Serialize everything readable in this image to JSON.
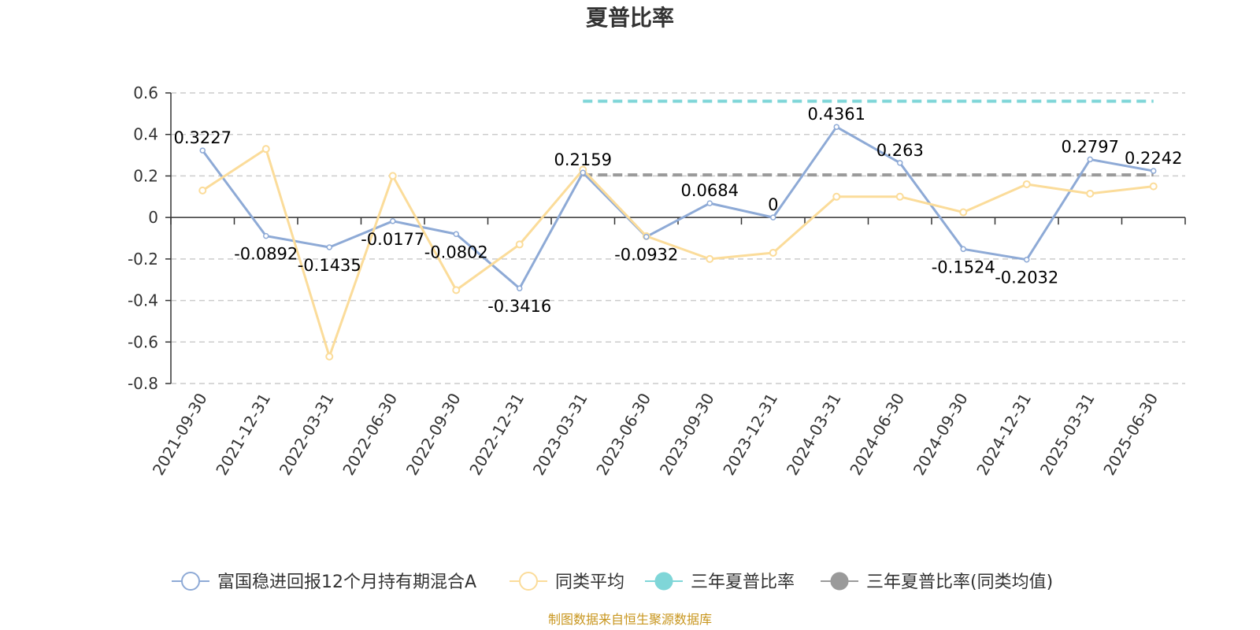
{
  "chart_data": {
    "type": "line",
    "title": "夏普比率",
    "xlabel": "",
    "ylabel": "",
    "categories": [
      "2021-09-30",
      "2021-12-31",
      "2022-03-31",
      "2022-06-30",
      "2022-09-30",
      "2022-12-31",
      "2023-03-31",
      "2023-06-30",
      "2023-09-30",
      "2023-12-31",
      "2024-03-31",
      "2024-06-30",
      "2024-09-30",
      "2024-12-31",
      "2025-03-31",
      "2025-06-30"
    ],
    "ylim": [
      -0.8,
      0.6
    ],
    "yticks": [
      "0.6",
      "0.4",
      "0.2",
      "0",
      "-0.2",
      "-0.4",
      "-0.6",
      "-0.8"
    ],
    "ytick_values": [
      0.6,
      0.4,
      0.2,
      0,
      -0.2,
      -0.4,
      -0.6,
      -0.8
    ],
    "grid": true,
    "legend_position": "bottom",
    "series": [
      {
        "name": "富国稳进回报12个月持有期混合A",
        "color": "#8eaad6",
        "values": [
          0.3227,
          -0.0892,
          -0.1435,
          -0.0177,
          -0.0802,
          -0.3416,
          0.2159,
          -0.0932,
          0.0684,
          0,
          0.4361,
          0.263,
          -0.1524,
          -0.2032,
          0.2797,
          0.2242
        ],
        "labels": [
          "0.3227",
          "-0.0892",
          "-0.1435",
          "-0.0177",
          "-0.0802",
          "-0.3416",
          "0.2159",
          "-0.0932",
          "0.0684",
          "0",
          "0.4361",
          "0.263",
          "-0.1524",
          "-0.2032",
          "0.2797",
          "0.2242"
        ]
      },
      {
        "name": "同类平均",
        "color": "#fbdc9a",
        "values": [
          0.13,
          0.33,
          -0.67,
          0.2,
          -0.35,
          -0.13,
          0.23,
          -0.09,
          -0.2,
          -0.17,
          0.1,
          0.1,
          0.025,
          0.16,
          0.115,
          0.15
        ]
      },
      {
        "name": "三年夏普比率",
        "color": "#7fd6d8",
        "x_range": [
          "2023-03-31",
          "2025-06-30"
        ],
        "value": 0.56
      },
      {
        "name": "三年夏普比率(同类均值)",
        "color": "#9a9a9a",
        "x_range": [
          "2023-03-31",
          "2025-06-30"
        ],
        "value": 0.205
      }
    ]
  },
  "footer": {
    "source": "制图数据来自恒生聚源数据库"
  }
}
